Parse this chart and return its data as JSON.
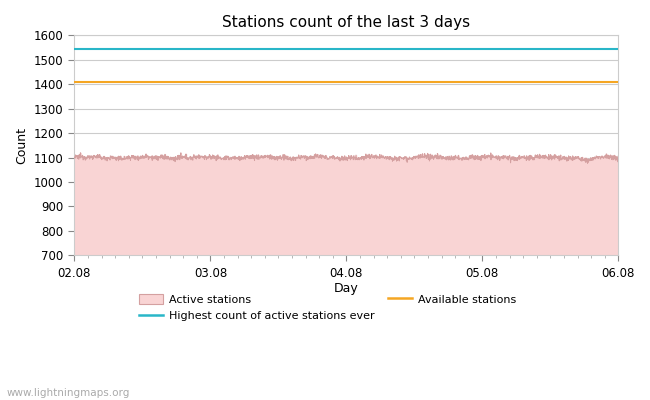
{
  "title": "Stations count of the last 3 days",
  "xlabel": "Day",
  "ylabel": "Count",
  "ylim": [
    700,
    1600
  ],
  "yticks": [
    700,
    800,
    900,
    1000,
    1100,
    1200,
    1300,
    1400,
    1500,
    1600
  ],
  "xtick_labels": [
    "02.08",
    "03.08",
    "04.08",
    "05.08",
    "06.08"
  ],
  "xtick_positions": [
    0,
    1,
    2,
    3,
    4
  ],
  "active_stations_base": 1100,
  "highest_ever": 1545,
  "available_stations": 1410,
  "fill_color": "#f9d4d4",
  "active_line_color": "#d4a0a0",
  "highest_color": "#29b6c8",
  "available_color": "#f5a623",
  "background_color": "#ffffff",
  "grid_color": "#cccccc",
  "watermark": "www.lightningmaps.org",
  "watermark_color": "#aaaaaa",
  "figsize": [
    6.5,
    4.0
  ],
  "dpi": 100
}
